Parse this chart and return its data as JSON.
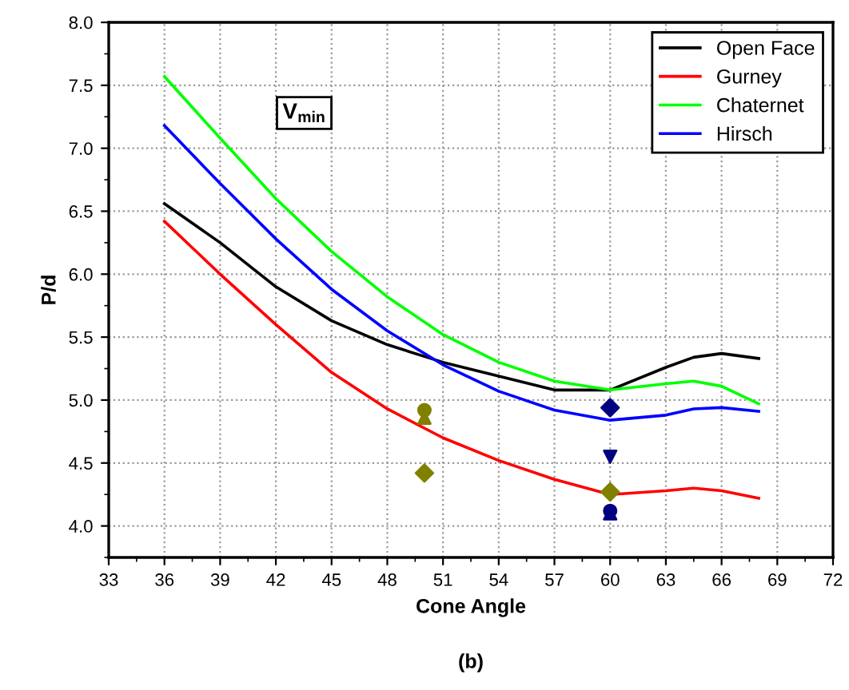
{
  "chart_data": {
    "type": "line",
    "xlabel": "Cone Angle",
    "ylabel": "P/d",
    "annotations": [
      "V$_{min}$",
      "(b)"
    ],
    "xlim": [
      33,
      72
    ],
    "xticks": [
      33,
      36,
      39,
      42,
      45,
      48,
      51,
      54,
      57,
      60,
      63,
      66,
      69,
      72
    ],
    "ylim": [
      3.75,
      8.0
    ],
    "yticks": [
      {
        "value": 4,
        "label": "4.0"
      },
      4.5,
      {
        "value": 5,
        "label": "5.0"
      },
      5.5,
      {
        "value": 6,
        "label": "6.0"
      },
      6.5,
      {
        "value": 7,
        "label": "7.0"
      },
      7.5,
      {
        "value": 8,
        "label": "8.0"
      }
    ],
    "grid": true,
    "legend": "top right",
    "marker": "none",
    "line_style": "solid",
    "series": [
      {
        "name": "Open Face",
        "color": "#000000",
        "x": [
          36,
          39,
          42,
          45,
          48,
          51,
          54,
          57,
          60,
          63,
          64.5,
          66,
          68
        ],
        "values": [
          6.56,
          6.25,
          5.9,
          5.63,
          5.44,
          5.3,
          5.19,
          5.08,
          5.08,
          5.26,
          5.34,
          5.37,
          5.33
        ]
      },
      {
        "name": "Gurney",
        "color": "#ff0000",
        "x": [
          36,
          39,
          42,
          45,
          48,
          51,
          54,
          57,
          60,
          63,
          64.5,
          66,
          68
        ],
        "values": [
          6.42,
          6.0,
          5.6,
          5.22,
          4.93,
          4.7,
          4.52,
          4.37,
          4.25,
          4.28,
          4.3,
          4.28,
          4.22
        ]
      },
      {
        "name": "Chaternet",
        "color": "#00ff00",
        "x": [
          36,
          39,
          42,
          45,
          48,
          51,
          54,
          57,
          60,
          63,
          64.5,
          66,
          68
        ],
        "values": [
          7.57,
          7.08,
          6.6,
          6.18,
          5.82,
          5.52,
          5.3,
          5.15,
          5.08,
          5.13,
          5.15,
          5.11,
          4.97
        ]
      },
      {
        "name": "Hirsch",
        "color": "#0000ff",
        "x": [
          36,
          39,
          42,
          45,
          48,
          51,
          54,
          57,
          60,
          63,
          64.5,
          66,
          68
        ],
        "values": [
          7.18,
          6.72,
          6.28,
          5.88,
          5.55,
          5.28,
          5.07,
          4.92,
          4.84,
          4.88,
          4.93,
          4.94,
          4.91
        ]
      },
      {
        "type": "scatter",
        "marker": "circle",
        "color": "#808000",
        "x": [
          50
        ],
        "values": [
          4.92
        ]
      },
      {
        "type": "scatter",
        "marker": "triangle",
        "color": "#808000",
        "x": [
          50
        ],
        "values": [
          4.86
        ]
      },
      {
        "type": "scatter",
        "marker": "diamond",
        "color": "#808000",
        "x": [
          50,
          60
        ],
        "values": [
          4.42,
          4.27
        ]
      },
      {
        "type": "scatter",
        "marker": "diamond",
        "color": "#000080",
        "x": [
          60
        ],
        "values": [
          4.94
        ]
      },
      {
        "type": "scatter",
        "marker": "triangle_down",
        "color": "#000080",
        "x": [
          60
        ],
        "values": [
          4.55
        ]
      },
      {
        "type": "scatter",
        "marker": "circle",
        "color": "#000080",
        "x": [
          60
        ],
        "values": [
          4.12
        ]
      },
      {
        "type": "scatter",
        "marker": "triangle",
        "color": "#000080",
        "x": [
          60
        ],
        "values": [
          4.1
        ]
      }
    ]
  }
}
